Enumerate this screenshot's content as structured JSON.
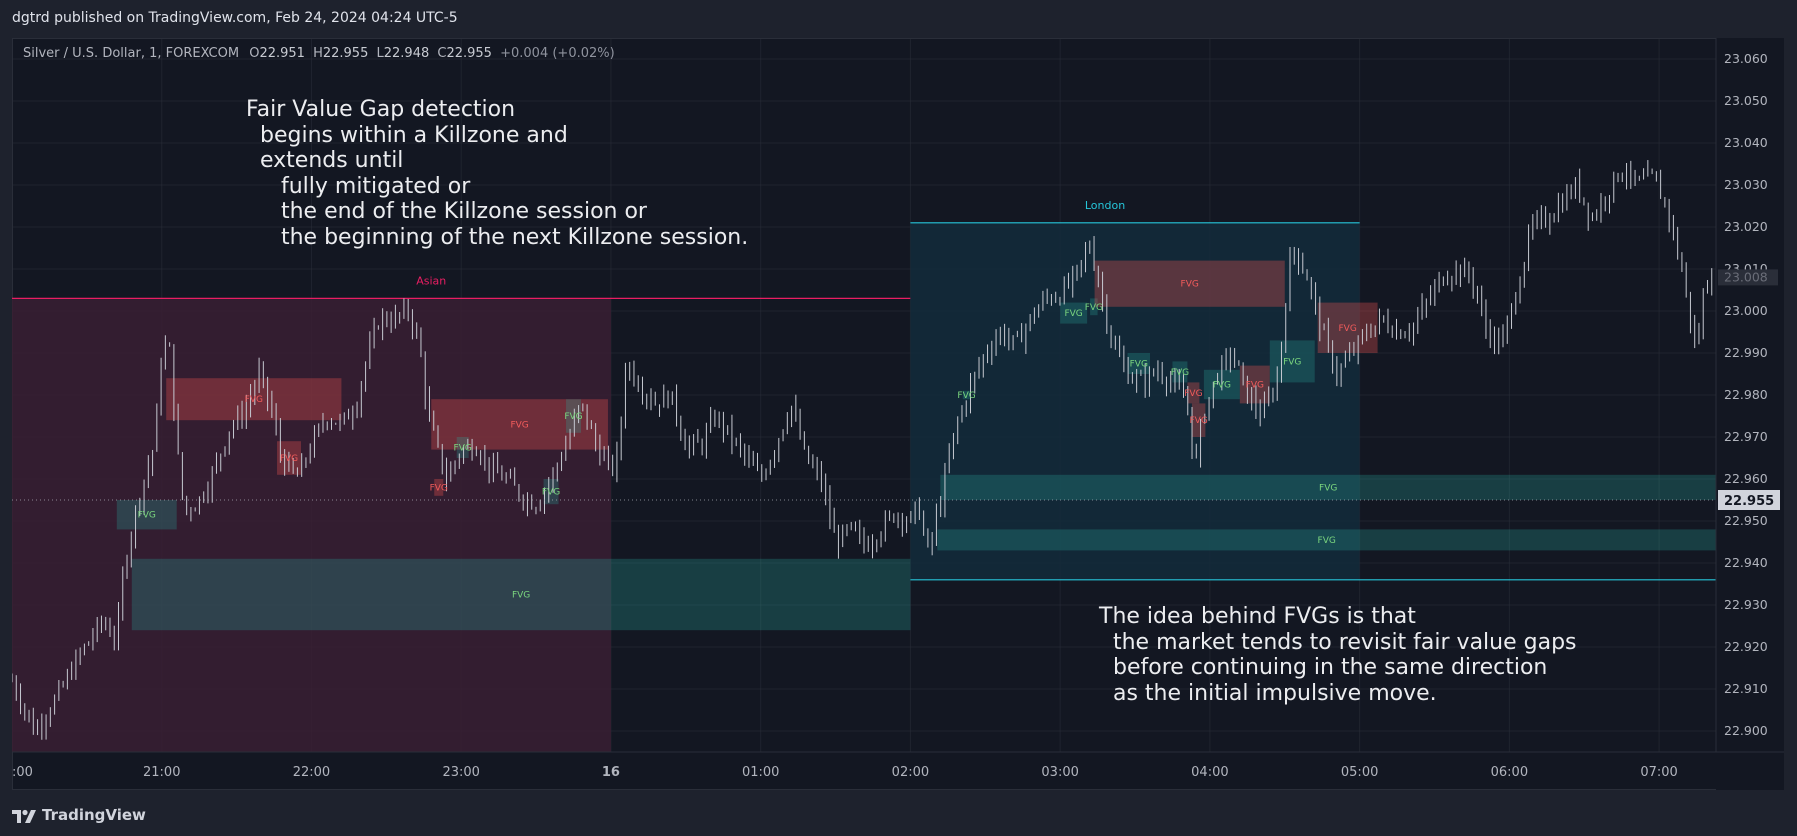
{
  "header": {
    "published_by": "dgtrd published on TradingView.com, Feb 24, 2024 04:24 UTC-5"
  },
  "legend": {
    "symbol": "Silver / U.S. Dollar, 1, FOREXCOM",
    "o_label": "O",
    "o_value": "22.951",
    "h_label": "H",
    "h_value": "22.955",
    "l_label": "L",
    "l_value": "22.948",
    "c_label": "C",
    "c_value": "22.955",
    "change": "+0.004 (+0.02%)"
  },
  "annotations": {
    "fvg_detection": "Fair Value Gap detection\n  begins within a Killzone and\n  extends until\n     fully mitigated or\n     the end of the Killzone session or\n     the beginning of the next Killzone session.",
    "idea": "The idea behind FVGs is that\n  the market tends to revisit fair value gaps\n  before continuing in the same direction\n  as the initial impulsive move."
  },
  "footer": {
    "brand": "TradingView"
  },
  "colors": {
    "bg": "#131722",
    "grid": "#2a2e39",
    "candle": "#c6c9d1",
    "asian_zone": "#3a1e33",
    "asian_line": "#e91e63",
    "london_zone": "#132c3b",
    "london_line": "#26c6da",
    "bull_fvg": "#26a69a",
    "bear_fvg": "#ef5350",
    "bull_text": "#7bd67f",
    "bear_text": "#f15b5b"
  },
  "chart_data": {
    "type": "candlestick",
    "symbol": "Silver / U.S. Dollar",
    "interval": "1",
    "ylim": [
      22.895,
      23.065
    ],
    "y_ticks": [
      "23.060",
      "23.050",
      "23.040",
      "23.030",
      "23.020",
      "23.010",
      "23.000",
      "22.990",
      "22.980",
      "22.970",
      "22.960",
      "22.950",
      "22.940",
      "22.930",
      "22.920",
      "22.910",
      "22.900"
    ],
    "x_ticks": [
      ":00",
      "21:00",
      "22:00",
      "23:00",
      "16",
      "01:00",
      "02:00",
      "03:00",
      "04:00",
      "05:00",
      "06:00",
      "07:00"
    ],
    "x_tick_hours": [
      20,
      21,
      22,
      23,
      24,
      25,
      26,
      27,
      28,
      29,
      30,
      31
    ],
    "x_range_hours": [
      20,
      31.38
    ],
    "last_price": "22.955",
    "last_price_value": 22.955,
    "partial_price": "23.008",
    "partial_price_value": 23.008,
    "killzones": [
      {
        "label": "Asian",
        "start": 20,
        "end": 24,
        "line_end": 26,
        "low": 22.895,
        "high": 23.003
      },
      {
        "label": "London",
        "start": 26,
        "end": 29,
        "line_end": 29,
        "low": 22.936,
        "high": 23.021
      }
    ],
    "fvgs": [
      {
        "label": "FVG",
        "dir": "bull",
        "start": 20.8,
        "end": 26,
        "low": 22.924,
        "high": 22.941
      },
      {
        "label": "FVG",
        "dir": "bull",
        "start": 20.7,
        "end": 21.1,
        "low": 22.948,
        "high": 22.955
      },
      {
        "label": "FVG",
        "dir": "bear",
        "start": 21.03,
        "end": 22.2,
        "low": 22.974,
        "high": 22.984
      },
      {
        "label": "FVG",
        "dir": "bear",
        "start": 21.77,
        "end": 21.93,
        "low": 22.961,
        "high": 22.969
      },
      {
        "label": "FVG",
        "dir": "bear",
        "start": 22.8,
        "end": 23.98,
        "low": 22.967,
        "high": 22.979
      },
      {
        "label": "FVG",
        "dir": "bull",
        "start": 22.97,
        "end": 23.05,
        "low": 22.965,
        "high": 22.97
      },
      {
        "label": "FVG",
        "dir": "bear",
        "start": 22.82,
        "end": 22.88,
        "low": 22.956,
        "high": 22.96
      },
      {
        "label": "FVG",
        "dir": "bull",
        "start": 23.55,
        "end": 23.65,
        "low": 22.954,
        "high": 22.96
      },
      {
        "label": "FVG",
        "dir": "bull",
        "start": 23.7,
        "end": 23.8,
        "low": 22.971,
        "high": 22.979
      },
      {
        "label": "FVG",
        "dir": "bull",
        "start": 26.2,
        "end": 31.38,
        "low": 22.955,
        "high": 22.961
      },
      {
        "label": "FVG",
        "dir": "bull",
        "start": 26.18,
        "end": 31.38,
        "low": 22.943,
        "high": 22.948
      },
      {
        "label": "FVG",
        "dir": "bull",
        "start": 26.35,
        "end": 26.4,
        "low": 22.979,
        "high": 22.981
      },
      {
        "label": "FVG",
        "dir": "bull",
        "start": 27.0,
        "end": 27.18,
        "low": 22.997,
        "high": 23.002
      },
      {
        "label": "FVG",
        "dir": "bull",
        "start": 27.2,
        "end": 27.25,
        "low": 22.999,
        "high": 23.003
      },
      {
        "label": "FVG",
        "dir": "bear",
        "start": 27.23,
        "end": 28.5,
        "low": 23.001,
        "high": 23.012
      },
      {
        "label": "FVG",
        "dir": "bull",
        "start": 27.45,
        "end": 27.6,
        "low": 22.985,
        "high": 22.99
      },
      {
        "label": "FVG",
        "dir": "bull",
        "start": 27.75,
        "end": 27.85,
        "low": 22.983,
        "high": 22.988
      },
      {
        "label": "FVG",
        "dir": "bear",
        "start": 27.85,
        "end": 27.93,
        "low": 22.978,
        "high": 22.983
      },
      {
        "label": "FVG",
        "dir": "bear",
        "start": 27.88,
        "end": 27.97,
        "low": 22.97,
        "high": 22.978
      },
      {
        "label": "FVG",
        "dir": "bull",
        "start": 27.96,
        "end": 28.2,
        "low": 22.979,
        "high": 22.986
      },
      {
        "label": "FVG",
        "dir": "bear",
        "start": 28.2,
        "end": 28.4,
        "low": 22.978,
        "high": 22.987
      },
      {
        "label": "FVG",
        "dir": "bull",
        "start": 28.4,
        "end": 28.7,
        "low": 22.983,
        "high": 22.993
      },
      {
        "label": "FVG",
        "dir": "bear",
        "start": 28.72,
        "end": 29.12,
        "low": 22.99,
        "high": 23.002
      }
    ],
    "price_path": [
      [
        20.0,
        22.912
      ],
      [
        20.15,
        22.9
      ],
      [
        20.3,
        22.908
      ],
      [
        20.45,
        22.918
      ],
      [
        20.6,
        22.926
      ],
      [
        20.7,
        22.922
      ],
      [
        20.75,
        22.94
      ],
      [
        20.85,
        22.956
      ],
      [
        20.95,
        22.968
      ],
      [
        21.0,
        22.99
      ],
      [
        21.05,
        22.992
      ],
      [
        21.1,
        22.968
      ],
      [
        21.15,
        22.952
      ],
      [
        21.25,
        22.955
      ],
      [
        21.35,
        22.962
      ],
      [
        21.45,
        22.972
      ],
      [
        21.55,
        22.976
      ],
      [
        21.65,
        22.985
      ],
      [
        21.72,
        22.978
      ],
      [
        21.8,
        22.965
      ],
      [
        21.9,
        22.96
      ],
      [
        22.0,
        22.968
      ],
      [
        22.1,
        22.975
      ],
      [
        22.2,
        22.973
      ],
      [
        22.3,
        22.978
      ],
      [
        22.35,
        22.986
      ],
      [
        22.45,
        22.998
      ],
      [
        22.55,
        22.998
      ],
      [
        22.65,
        23.0
      ],
      [
        22.72,
        22.992
      ],
      [
        22.78,
        22.975
      ],
      [
        22.85,
        22.966
      ],
      [
        22.9,
        22.96
      ],
      [
        23.0,
        22.967
      ],
      [
        23.1,
        22.968
      ],
      [
        23.2,
        22.962
      ],
      [
        23.3,
        22.96
      ],
      [
        23.4,
        22.956
      ],
      [
        23.5,
        22.954
      ],
      [
        23.6,
        22.96
      ],
      [
        23.7,
        22.968
      ],
      [
        23.8,
        22.978
      ],
      [
        23.9,
        22.968
      ],
      [
        24.0,
        22.962
      ],
      [
        24.05,
        22.966
      ],
      [
        24.1,
        22.988
      ],
      [
        24.2,
        22.982
      ],
      [
        24.3,
        22.978
      ],
      [
        24.4,
        22.98
      ],
      [
        24.5,
        22.968
      ],
      [
        24.6,
        22.968
      ],
      [
        24.7,
        22.975
      ],
      [
        24.8,
        22.97
      ],
      [
        24.9,
        22.965
      ],
      [
        25.0,
        22.96
      ],
      [
        25.1,
        22.968
      ],
      [
        25.2,
        22.978
      ],
      [
        25.3,
        22.965
      ],
      [
        25.4,
        22.96
      ],
      [
        25.5,
        22.945
      ],
      [
        25.6,
        22.948
      ],
      [
        25.7,
        22.944
      ],
      [
        25.8,
        22.948
      ],
      [
        25.9,
        22.952
      ],
      [
        26.0,
        22.95
      ],
      [
        26.05,
        22.954
      ],
      [
        26.12,
        22.942
      ],
      [
        26.2,
        22.955
      ],
      [
        26.3,
        22.972
      ],
      [
        26.4,
        22.982
      ],
      [
        26.5,
        22.99
      ],
      [
        26.6,
        22.995
      ],
      [
        26.7,
        22.992
      ],
      [
        26.8,
        22.998
      ],
      [
        26.9,
        23.003
      ],
      [
        27.0,
        23.004
      ],
      [
        27.1,
        23.008
      ],
      [
        27.2,
        23.016
      ],
      [
        27.25,
        23.008
      ],
      [
        27.35,
        22.992
      ],
      [
        27.45,
        22.985
      ],
      [
        27.55,
        22.983
      ],
      [
        27.65,
        22.986
      ],
      [
        27.75,
        22.983
      ],
      [
        27.85,
        22.978
      ],
      [
        27.9,
        22.962
      ],
      [
        27.95,
        22.975
      ],
      [
        28.05,
        22.985
      ],
      [
        28.15,
        22.99
      ],
      [
        28.25,
        22.98
      ],
      [
        28.35,
        22.975
      ],
      [
        28.45,
        22.984
      ],
      [
        28.55,
        23.016
      ],
      [
        28.65,
        23.008
      ],
      [
        28.75,
        22.995
      ],
      [
        28.85,
        22.985
      ],
      [
        28.95,
        22.99
      ],
      [
        29.05,
        22.995
      ],
      [
        29.15,
        22.998
      ],
      [
        29.25,
        22.995
      ],
      [
        29.35,
        22.996
      ],
      [
        29.45,
        23.002
      ],
      [
        29.55,
        23.008
      ],
      [
        29.65,
        23.01
      ],
      [
        29.75,
        23.008
      ],
      [
        29.85,
        22.995
      ],
      [
        29.95,
        22.992
      ],
      [
        30.05,
        23.005
      ],
      [
        30.15,
        23.02
      ],
      [
        30.25,
        23.022
      ],
      [
        30.35,
        23.026
      ],
      [
        30.45,
        23.03
      ],
      [
        30.55,
        23.022
      ],
      [
        30.65,
        23.028
      ],
      [
        30.75,
        23.034
      ],
      [
        30.85,
        23.03
      ],
      [
        30.95,
        23.032
      ],
      [
        31.05,
        23.025
      ],
      [
        31.15,
        23.01
      ],
      [
        31.25,
        22.99
      ],
      [
        31.3,
        23.005
      ],
      [
        31.38,
        23.014
      ]
    ]
  }
}
